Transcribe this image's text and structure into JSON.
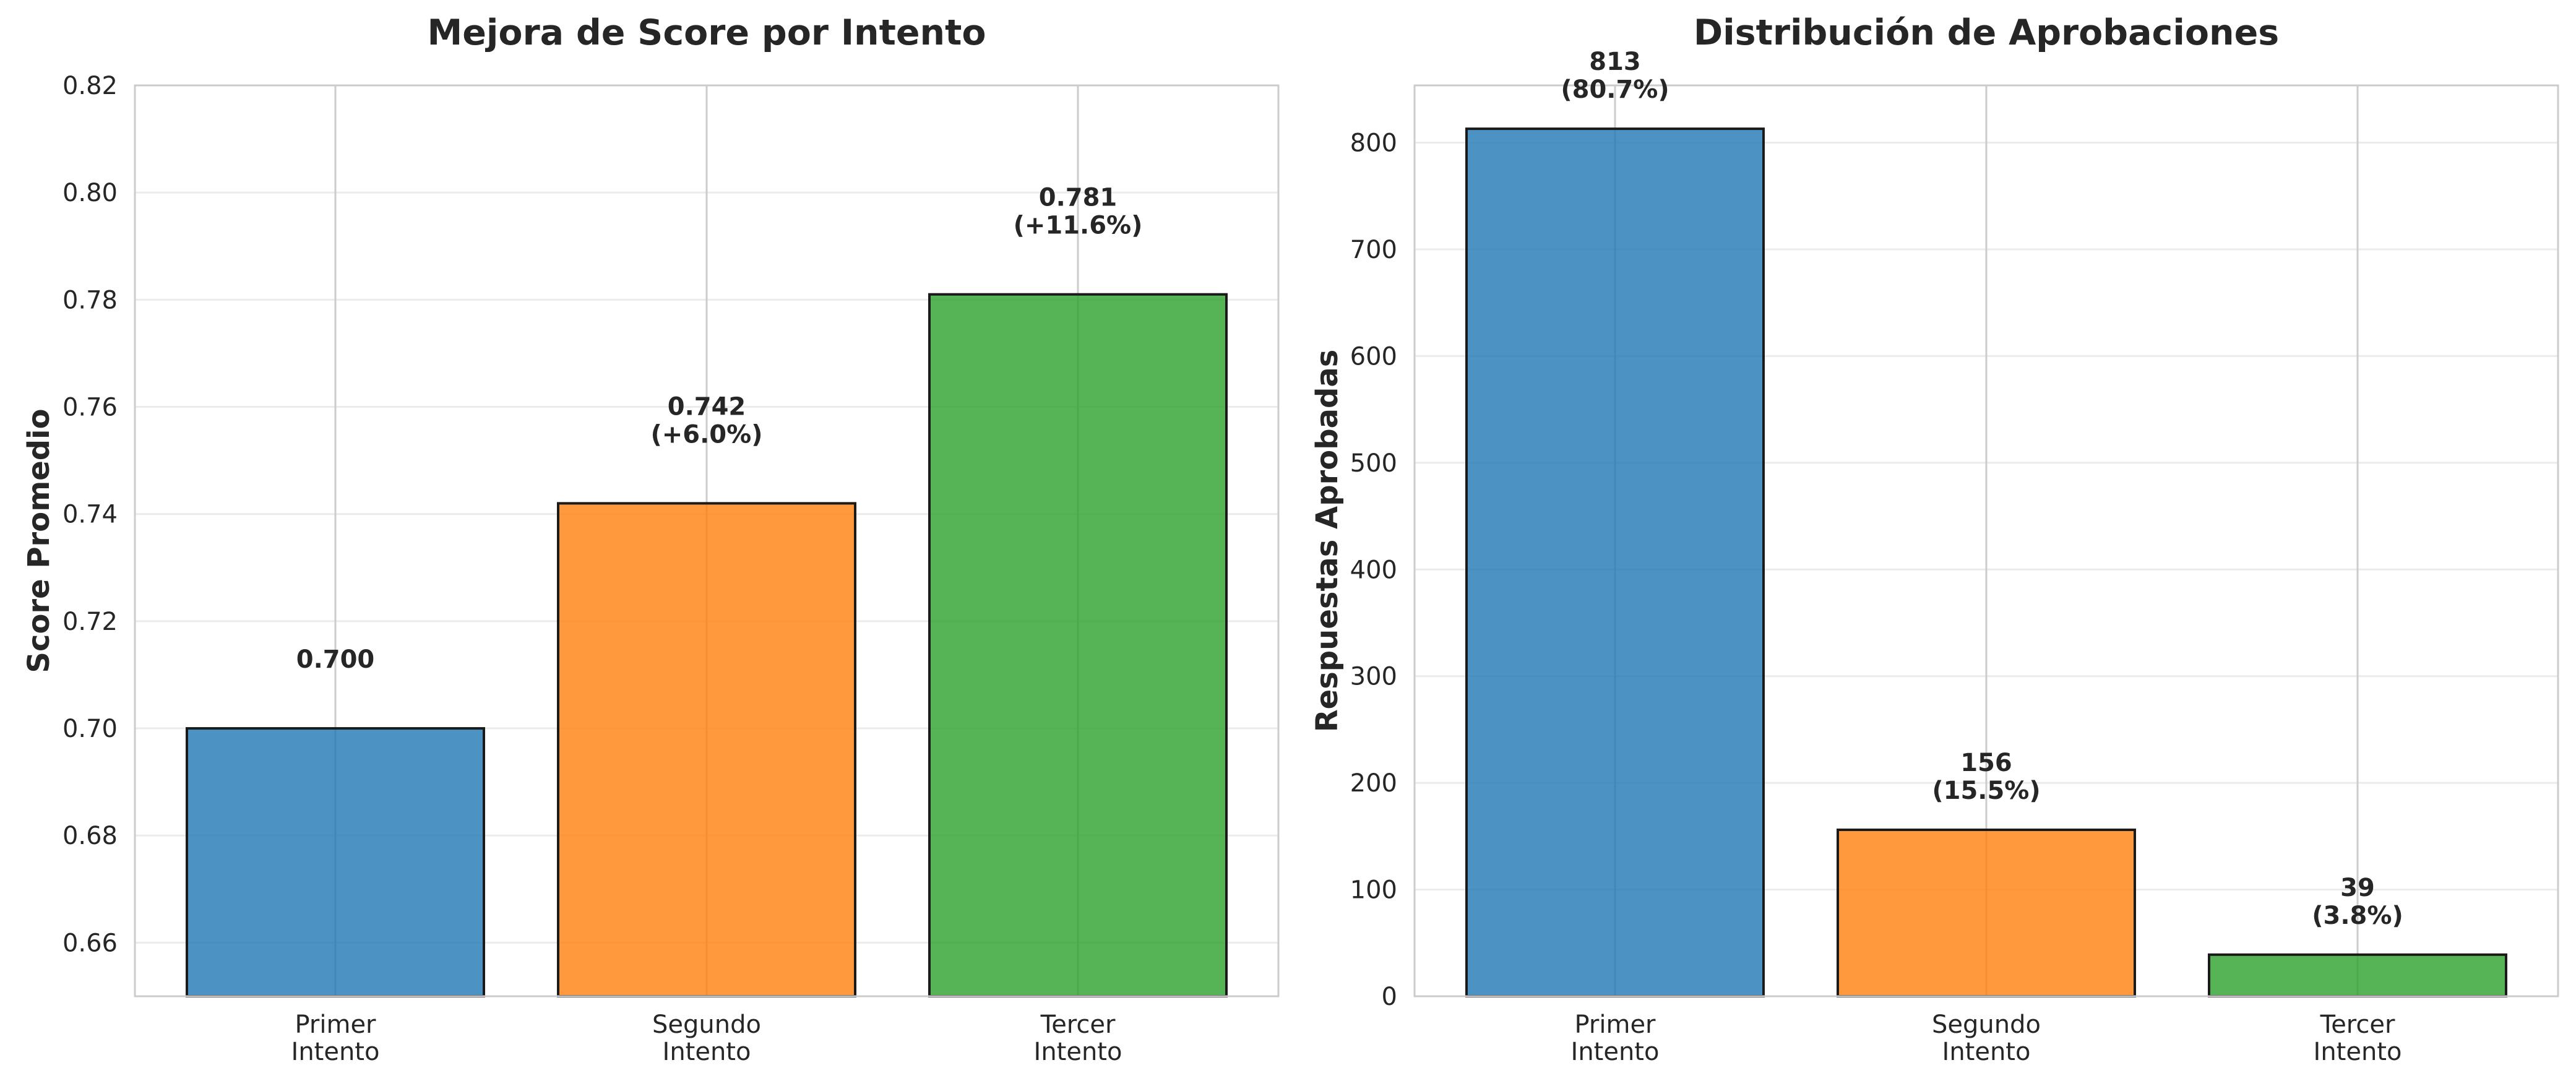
{
  "colors": {
    "series": [
      "#1f77b4",
      "#ff7f0e",
      "#2ca02c"
    ],
    "grid": "#ebebeb",
    "vgrid": "#cccccc",
    "frame": "#cccccc",
    "edge": "#1a1a1a"
  },
  "chart_data": [
    {
      "type": "bar",
      "title": "Mejora de Score por Intento",
      "xlabel": "",
      "ylabel": "Score Promedio",
      "categories": [
        [
          "Primer",
          "Intento"
        ],
        [
          "Segundo",
          "Intento"
        ],
        [
          "Tercer",
          "Intento"
        ]
      ],
      "values": [
        0.7,
        0.742,
        0.781
      ],
      "data_labels": [
        [
          "0.700"
        ],
        [
          "0.742",
          "(+6.0%)"
        ],
        [
          "0.781",
          "(+11.6%)"
        ]
      ],
      "ylim": [
        0.65,
        0.82
      ],
      "yticks": [
        0.66,
        0.68,
        0.7,
        0.72,
        0.74,
        0.76,
        0.78,
        0.8,
        0.82
      ],
      "ytick_labels": [
        "0.66",
        "0.68",
        "0.70",
        "0.72",
        "0.74",
        "0.76",
        "0.78",
        "0.80",
        "0.82"
      ],
      "grid": true
    },
    {
      "type": "bar",
      "title": "Distribución de Aprobaciones",
      "xlabel": "",
      "ylabel": "Respuestas Aprobadas",
      "categories": [
        [
          "Primer",
          "Intento"
        ],
        [
          "Segundo",
          "Intento"
        ],
        [
          "Tercer",
          "Intento"
        ]
      ],
      "values": [
        813,
        156,
        39
      ],
      "data_labels": [
        [
          "813",
          "(80.7%)"
        ],
        [
          "156",
          "(15.5%)"
        ],
        [
          "39",
          "(3.8%)"
        ]
      ],
      "ylim": [
        0,
        853.65
      ],
      "yticks": [
        0,
        100,
        200,
        300,
        400,
        500,
        600,
        700,
        800
      ],
      "ytick_labels": [
        "0",
        "100",
        "200",
        "300",
        "400",
        "500",
        "600",
        "700",
        "800"
      ],
      "grid": true
    }
  ]
}
